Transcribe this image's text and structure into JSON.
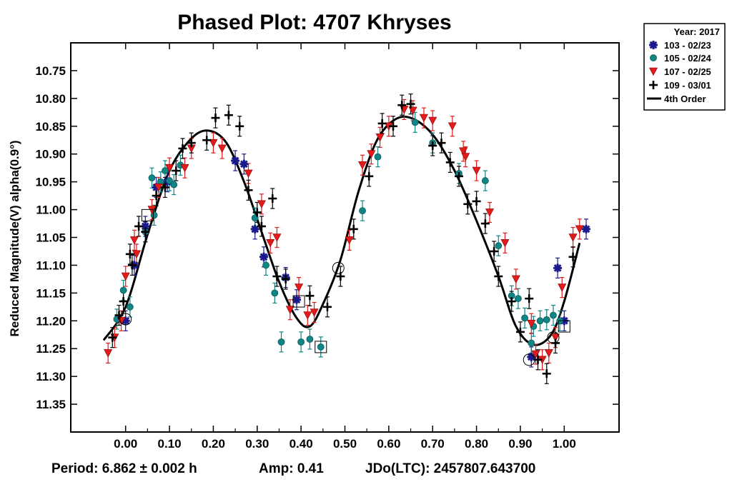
{
  "chart_data": {
    "type": "scatter",
    "title": "Phased Plot: 4707 Khryses",
    "ylabel": "Reduced Magnitude(V) alpha(0.9°)",
    "xlabel": "",
    "xlim": [
      -0.125,
      1.125
    ],
    "ylim": [
      11.4,
      10.7
    ],
    "y_reversed": true,
    "x_ticks": [
      "0.00",
      "0.10",
      "0.20",
      "0.30",
      "0.40",
      "0.50",
      "0.60",
      "0.70",
      "0.80",
      "0.90",
      "1.00"
    ],
    "y_ticks": [
      "10.75",
      "10.80",
      "10.85",
      "10.90",
      "10.95",
      "11.00",
      "11.05",
      "11.10",
      "11.15",
      "11.20",
      "11.25",
      "11.30",
      "11.35"
    ],
    "legend": {
      "title": "Year: 2017",
      "position": "top-right",
      "entries": [
        "103 - 02/23",
        "105 - 02/24",
        "107 - 02/25",
        "109 - 03/01",
        "4th Order"
      ]
    },
    "footer": {
      "period": "Period: 6.862 ± 0.002 h",
      "amp": "Amp: 0.41",
      "jdo": "JDo(LTC): 2457807.643700"
    },
    "colors": {
      "s103": "#1a1a8c",
      "s105": "#0f8585",
      "s107": "#e31b1b",
      "s109": "#000000",
      "fit": "#000000"
    },
    "series": [
      {
        "name": "103 - 02/23",
        "marker": "asterisk",
        "x": [
          0.0,
          0.045,
          0.07,
          0.095,
          0.25,
          0.27,
          0.295,
          0.315,
          0.365,
          0.39,
          0.925,
          1.0,
          1.05,
          0.985,
          0.02
        ],
        "y": [
          11.2,
          11.03,
          10.96,
          10.95,
          10.912,
          10.918,
          11.035,
          11.085,
          11.122,
          11.162,
          11.265,
          11.2,
          11.035,
          11.105,
          11.1
        ]
      },
      {
        "name": "105 - 02/24",
        "marker": "circle",
        "x": [
          -0.02,
          0.045,
          0.06,
          0.08,
          0.09,
          0.1,
          0.11,
          0.125,
          0.295,
          0.32,
          0.34,
          0.355,
          0.4,
          0.42,
          0.445,
          0.54,
          0.575,
          0.66,
          0.7,
          0.76,
          0.82,
          0.85,
          0.88,
          0.895,
          0.91,
          0.925,
          0.93,
          0.945,
          0.96,
          0.975,
          0.99,
          0.065,
          0.01,
          -0.005
        ],
        "y": [
          11.197,
          11.04,
          10.943,
          10.95,
          10.93,
          10.948,
          10.955,
          10.92,
          11.015,
          11.1,
          11.15,
          11.238,
          11.238,
          11.233,
          11.247,
          11.002,
          10.905,
          10.843,
          10.88,
          10.935,
          10.948,
          11.065,
          11.155,
          11.16,
          11.195,
          11.24,
          11.21,
          11.2,
          11.198,
          11.19,
          11.2,
          11.01,
          11.175,
          11.145
        ]
      },
      {
        "name": "107 - 02/25",
        "marker": "triangle",
        "x": [
          -0.04,
          -0.025,
          -0.01,
          0.0,
          0.02,
          0.025,
          0.06,
          0.075,
          0.1,
          0.135,
          0.15,
          0.2,
          0.22,
          0.28,
          0.31,
          0.33,
          0.345,
          0.375,
          0.395,
          0.415,
          0.43,
          0.54,
          0.56,
          0.58,
          0.6,
          0.635,
          0.655,
          0.68,
          0.7,
          0.745,
          0.77,
          0.775,
          0.8,
          0.83,
          0.865,
          0.89,
          0.925,
          0.935,
          0.95,
          0.965,
          0.98,
          0.995,
          1.02,
          1.035,
          0.51
        ],
        "y": [
          11.258,
          11.23,
          11.2,
          11.12,
          11.055,
          11.08,
          11.0,
          10.96,
          10.925,
          10.925,
          10.89,
          10.88,
          10.89,
          10.935,
          10.99,
          11.06,
          11.05,
          11.18,
          11.14,
          11.19,
          11.185,
          10.92,
          10.9,
          10.87,
          10.85,
          10.82,
          10.822,
          10.835,
          10.84,
          10.85,
          10.895,
          10.905,
          10.93,
          11.005,
          11.06,
          11.125,
          11.205,
          11.26,
          11.27,
          11.258,
          11.23,
          11.14,
          11.05,
          11.035,
          11.055
        ]
      },
      {
        "name": "109 - 03/01",
        "marker": "plus",
        "x": [
          -0.03,
          -0.015,
          0.01,
          0.015,
          0.03,
          0.045,
          0.07,
          0.09,
          0.115,
          0.13,
          0.15,
          0.185,
          0.205,
          0.235,
          0.26,
          0.28,
          0.3,
          0.31,
          0.335,
          0.345,
          0.365,
          0.42,
          0.46,
          0.49,
          0.52,
          0.555,
          0.585,
          0.61,
          0.63,
          0.65,
          0.7,
          0.72,
          0.74,
          0.76,
          0.78,
          0.8,
          0.82,
          0.84,
          0.85,
          0.88,
          0.9,
          0.92,
          0.94,
          0.96,
          0.98,
          1.02,
          -0.005
        ],
        "y": [
          11.23,
          11.19,
          11.08,
          11.1,
          11.03,
          11.04,
          10.975,
          10.96,
          10.93,
          10.89,
          10.88,
          10.875,
          10.835,
          10.83,
          10.85,
          10.965,
          11.005,
          11.03,
          10.98,
          11.12,
          11.125,
          11.155,
          11.175,
          11.12,
          11.035,
          10.94,
          10.845,
          10.85,
          10.812,
          10.81,
          10.885,
          10.88,
          10.915,
          10.94,
          10.99,
          10.985,
          11.025,
          11.075,
          11.12,
          11.165,
          11.22,
          11.16,
          11.27,
          11.295,
          11.24,
          11.085,
          11.165
        ]
      }
    ],
    "circled_points": [
      {
        "x": 0.0,
        "y": 11.197
      },
      {
        "x": 0.485,
        "y": 11.105
      },
      {
        "x": 0.92,
        "y": 11.27
      },
      {
        "x": 0.975,
        "y": 11.23
      }
    ],
    "boxed_points": [
      {
        "x": 0.05,
        "y": 11.01
      },
      {
        "x": 0.395,
        "y": 11.165
      },
      {
        "x": 0.445,
        "y": 11.247
      },
      {
        "x": 1.0,
        "y": 11.21
      }
    ],
    "fit": {
      "name": "4th Order",
      "points": [
        [
          -0.05,
          11.235
        ],
        [
          0.0,
          11.175
        ],
        [
          0.05,
          11.045
        ],
        [
          0.1,
          10.93
        ],
        [
          0.15,
          10.872
        ],
        [
          0.19,
          10.858
        ],
        [
          0.23,
          10.88
        ],
        [
          0.27,
          10.95
        ],
        [
          0.31,
          11.04
        ],
        [
          0.35,
          11.13
        ],
        [
          0.39,
          11.195
        ],
        [
          0.42,
          11.21
        ],
        [
          0.45,
          11.17
        ],
        [
          0.49,
          11.09
        ],
        [
          0.53,
          10.97
        ],
        [
          0.57,
          10.88
        ],
        [
          0.61,
          10.84
        ],
        [
          0.65,
          10.835
        ],
        [
          0.7,
          10.865
        ],
        [
          0.75,
          10.93
        ],
        [
          0.8,
          11.02
        ],
        [
          0.85,
          11.12
        ],
        [
          0.89,
          11.21
        ],
        [
          0.93,
          11.243
        ],
        [
          0.97,
          11.225
        ],
        [
          1.0,
          11.165
        ],
        [
          1.035,
          11.06
        ]
      ]
    }
  }
}
